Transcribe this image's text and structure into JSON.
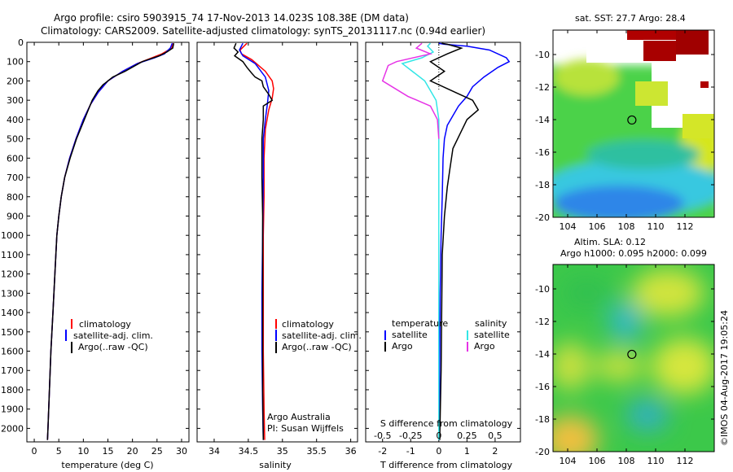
{
  "header": {
    "title_line1": "Argo profile: csiro 5903915_74 17-Nov-2013 14.023S 108.38E (DM data)",
    "title_line2": "Climatology: CARS2009. Satellite-adjusted climatology: synTS_20131117.nc (0.94d earlier)"
  },
  "colors": {
    "climatology": "#ff0000",
    "satellite": "#0000ff",
    "argo": "#000000",
    "sal_satellite": "#33e6e6",
    "sal_argo": "#e633e6"
  },
  "depth_axis": {
    "ticks": [
      0,
      100,
      200,
      300,
      400,
      500,
      600,
      700,
      800,
      900,
      1000,
      1100,
      1200,
      1300,
      1400,
      1500,
      1600,
      1700,
      1800,
      1900,
      2000
    ],
    "ylim": [
      0,
      2070
    ]
  },
  "legend": {
    "items": [
      "climatology",
      "satellite-adj. clim.",
      "Argo(..raw -QC)"
    ]
  },
  "diff_legend": {
    "temp_header": "temperature",
    "sal_header": "salinity",
    "temp_items": [
      "satellite",
      "Argo"
    ],
    "sal_items": [
      "satellite",
      "Argo"
    ]
  },
  "credits": {
    "line1": "Argo Australia",
    "line2": "PI: Susan Wijffels"
  },
  "chart_data": [
    {
      "type": "line",
      "id": "temperature",
      "xlabel": "temperature (deg C)",
      "xlim": [
        -1.5,
        31.5
      ],
      "xticks": [
        0,
        5,
        10,
        15,
        20,
        25,
        30
      ],
      "series": [
        {
          "name": "climatology",
          "color": "#ff0000",
          "points": [
            [
              28.3,
              5
            ],
            [
              28,
              30
            ],
            [
              26,
              60
            ],
            [
              24,
              80
            ],
            [
              21,
              110
            ],
            [
              18,
              150
            ],
            [
              15,
              200
            ],
            [
              13,
              260
            ],
            [
              11.5,
              320
            ],
            [
              10,
              400
            ],
            [
              8.5,
              500
            ],
            [
              7.2,
              600
            ],
            [
              6.2,
              700
            ],
            [
              5.5,
              800
            ],
            [
              5,
              900
            ],
            [
              4.6,
              1000
            ],
            [
              4.2,
              1200
            ],
            [
              3.8,
              1400
            ],
            [
              3.4,
              1600
            ],
            [
              3.1,
              1800
            ],
            [
              2.8,
              2000
            ],
            [
              2.7,
              2060
            ]
          ]
        },
        {
          "name": "satellite-adj. clim.",
          "color": "#0000ff",
          "points": [
            [
              28.1,
              5
            ],
            [
              27.7,
              30
            ],
            [
              26.5,
              60
            ],
            [
              24.5,
              80
            ],
            [
              21,
              110
            ],
            [
              18,
              150
            ],
            [
              15,
              200
            ],
            [
              13,
              260
            ],
            [
              11.5,
              320
            ],
            [
              10,
              400
            ],
            [
              8.5,
              500
            ],
            [
              7.2,
              600
            ],
            [
              6.2,
              700
            ],
            [
              5.5,
              800
            ],
            [
              5,
              900
            ],
            [
              4.6,
              1000
            ],
            [
              4.2,
              1200
            ],
            [
              3.8,
              1400
            ],
            [
              3.4,
              1600
            ],
            [
              3.1,
              1800
            ],
            [
              2.8,
              2000
            ],
            [
              2.7,
              2060
            ]
          ]
        },
        {
          "name": "Argo(..raw -QC)",
          "color": "#000000",
          "points": [
            [
              28.4,
              5
            ],
            [
              28.2,
              30
            ],
            [
              27,
              50
            ],
            [
              25.5,
              70
            ],
            [
              22,
              100
            ],
            [
              18.5,
              150
            ],
            [
              16,
              180
            ],
            [
              14,
              220
            ],
            [
              13,
              250
            ],
            [
              11.8,
              300
            ],
            [
              10.2,
              400
            ],
            [
              8.6,
              500
            ],
            [
              7.3,
              600
            ],
            [
              6.2,
              700
            ],
            [
              5.5,
              800
            ],
            [
              5,
              900
            ],
            [
              4.6,
              1000
            ],
            [
              4.2,
              1200
            ],
            [
              3.8,
              1400
            ],
            [
              3.4,
              1600
            ],
            [
              3.1,
              1800
            ],
            [
              2.8,
              2000
            ],
            [
              2.7,
              2060
            ]
          ]
        }
      ]
    },
    {
      "type": "line",
      "id": "salinity",
      "xlabel": "salinity",
      "xlim": [
        33.75,
        36.1
      ],
      "xticks": [
        34,
        34.5,
        35,
        35.5,
        36
      ],
      "series": [
        {
          "name": "climatology",
          "color": "#ff0000",
          "points": [
            [
              34.48,
              5
            ],
            [
              34.38,
              40
            ],
            [
              34.4,
              60
            ],
            [
              34.55,
              90
            ],
            [
              34.75,
              150
            ],
            [
              34.85,
              200
            ],
            [
              34.87,
              240
            ],
            [
              34.85,
              290
            ],
            [
              34.8,
              350
            ],
            [
              34.75,
              450
            ],
            [
              34.73,
              600
            ],
            [
              34.73,
              800
            ],
            [
              34.72,
              1000
            ],
            [
              34.72,
              1300
            ],
            [
              34.72,
              1600
            ],
            [
              34.73,
              1900
            ],
            [
              34.74,
              2060
            ]
          ]
        },
        {
          "name": "satellite-adj. clim.",
          "color": "#0000ff",
          "points": [
            [
              34.42,
              5
            ],
            [
              34.37,
              40
            ],
            [
              34.42,
              70
            ],
            [
              34.6,
              110
            ],
            [
              34.75,
              180
            ],
            [
              34.8,
              250
            ],
            [
              34.78,
              320
            ],
            [
              34.75,
              400
            ],
            [
              34.72,
              500
            ],
            [
              34.72,
              700
            ],
            [
              34.71,
              1000
            ],
            [
              34.7,
              1300
            ],
            [
              34.7,
              1600
            ],
            [
              34.71,
              1900
            ],
            [
              34.72,
              2060
            ]
          ]
        },
        {
          "name": "Argo(..raw -QC)",
          "color": "#000000",
          "points": [
            [
              34.32,
              5
            ],
            [
              34.29,
              30
            ],
            [
              34.35,
              50
            ],
            [
              34.3,
              70
            ],
            [
              34.42,
              100
            ],
            [
              34.48,
              130
            ],
            [
              34.55,
              160
            ],
            [
              34.6,
              180
            ],
            [
              34.7,
              200
            ],
            [
              34.72,
              230
            ],
            [
              34.8,
              270
            ],
            [
              34.85,
              300
            ],
            [
              34.72,
              330
            ],
            [
              34.72,
              400
            ],
            [
              34.7,
              500
            ],
            [
              34.7,
              600
            ],
            [
              34.7,
              700
            ],
            [
              34.71,
              900
            ],
            [
              34.71,
              1200
            ],
            [
              34.71,
              1500
            ],
            [
              34.71,
              1800
            ],
            [
              34.72,
              2060
            ]
          ]
        }
      ]
    },
    {
      "type": "line",
      "id": "difference",
      "xlabel": "T difference from climatology",
      "xlabel_top": "S difference from climatology",
      "xlim": [
        -2.6,
        2.9
      ],
      "xticks": [
        -2,
        -1,
        0,
        1,
        2
      ],
      "top_ticks": [
        -0.5,
        -0.25,
        0,
        0.25,
        0.5
      ],
      "top_tick_scale": 4,
      "series": [
        {
          "name": "temperature satellite",
          "color": "#0000ff",
          "points": [
            [
              0,
              5
            ],
            [
              0.2,
              10
            ],
            [
              1,
              20
            ],
            [
              1.8,
              40
            ],
            [
              2.4,
              80
            ],
            [
              2.5,
              100
            ],
            [
              2.1,
              130
            ],
            [
              1.6,
              180
            ],
            [
              1.2,
              230
            ],
            [
              1,
              280
            ],
            [
              0.7,
              330
            ],
            [
              0.5,
              380
            ],
            [
              0.3,
              430
            ],
            [
              0.2,
              500
            ],
            [
              0.15,
              600
            ],
            [
              0.12,
              800
            ],
            [
              0.08,
              1000
            ],
            [
              0.05,
              1300
            ],
            [
              0.03,
              1700
            ],
            [
              0.02,
              2060
            ]
          ]
        },
        {
          "name": "temperature Argo",
          "color": "#000000",
          "points": [
            [
              0.1,
              5
            ],
            [
              0.3,
              10
            ],
            [
              0.8,
              30
            ],
            [
              0.3,
              60
            ],
            [
              -0.3,
              100
            ],
            [
              0.2,
              150
            ],
            [
              -0.3,
              200
            ],
            [
              0.6,
              260
            ],
            [
              1.2,
              300
            ],
            [
              1.4,
              350
            ],
            [
              1,
              400
            ],
            [
              0.8,
              460
            ],
            [
              0.5,
              550
            ],
            [
              0.4,
              650
            ],
            [
              0.3,
              750
            ],
            [
              0.2,
              900
            ],
            [
              0.12,
              1100
            ],
            [
              0.1,
              1400
            ],
            [
              0.08,
              1700
            ],
            [
              0.03,
              2060
            ]
          ]
        },
        {
          "name": "salinity satellite",
          "color": "#33e6e6",
          "points": [
            [
              -0.3,
              5
            ],
            [
              -0.4,
              20
            ],
            [
              -0.2,
              50
            ],
            [
              -0.6,
              80
            ],
            [
              -1.3,
              110
            ],
            [
              -0.5,
              200
            ],
            [
              -0.1,
              300
            ],
            [
              0,
              400
            ],
            [
              0,
              600
            ],
            [
              0,
              1000
            ],
            [
              0,
              1500
            ],
            [
              0,
              2060
            ]
          ]
        },
        {
          "name": "salinity Argo",
          "color": "#e633e6",
          "points": [
            [
              -0.6,
              5
            ],
            [
              -0.8,
              30
            ],
            [
              -0.3,
              60
            ],
            [
              -1.5,
              100
            ],
            [
              -1.8,
              120
            ],
            [
              -2,
              200
            ],
            [
              -1.1,
              280
            ],
            [
              -0.3,
              330
            ],
            [
              -0.05,
              400
            ],
            [
              0,
              500
            ]
          ]
        }
      ]
    },
    {
      "type": "heatmap",
      "id": "sst_map",
      "title": "sat. SST: 27.7  Argo: 28.4",
      "xlim": [
        103,
        114
      ],
      "ylim": [
        -20,
        -8.5
      ],
      "xticks": [
        104,
        106,
        108,
        110,
        112
      ],
      "yticks": [
        -20,
        -18,
        -16,
        -14,
        -12,
        -10
      ],
      "argo_position": [
        108.38,
        -14.023
      ]
    },
    {
      "type": "heatmap",
      "id": "sla_map",
      "title_line1": "Altim. SLA: 0.12",
      "title_line2": "Argo h1000: 0.095 h2000: 0.099",
      "xlim": [
        103,
        114
      ],
      "ylim": [
        -20,
        -8.5
      ],
      "xticks": [
        104,
        106,
        108,
        110,
        112
      ],
      "yticks": [
        -20,
        -18,
        -16,
        -14,
        -12,
        -10
      ],
      "argo_position": [
        108.38,
        -14.023
      ]
    }
  ],
  "footer": {
    "stamp": "©IMOS 04-Aug-2017 19:05:24"
  }
}
